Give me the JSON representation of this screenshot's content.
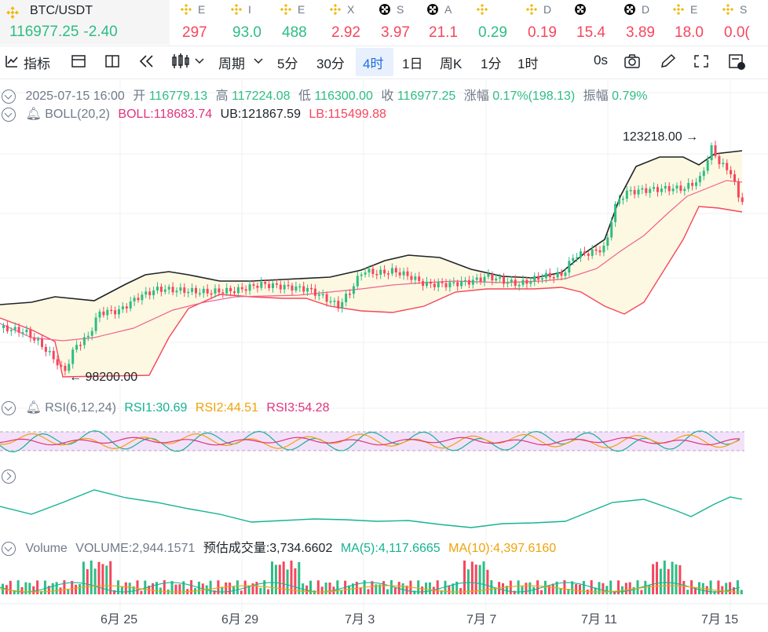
{
  "ticker": {
    "symbol": "BTC/USDT",
    "price": "116977.25",
    "change": "-2.40",
    "others": [
      {
        "icon": "bnb",
        "name": "E",
        "value": "297",
        "color": "#f6465d"
      },
      {
        "icon": "bnb",
        "name": "I",
        "value": "93.0",
        "color": "#2ebd85"
      },
      {
        "icon": "bnb",
        "name": "E",
        "value": "488",
        "color": "#2ebd85"
      },
      {
        "icon": "bnb",
        "name": "X",
        "value": "2.92",
        "color": "#f6465d"
      },
      {
        "icon": "okx",
        "name": "S",
        "value": "3.97",
        "color": "#f6465d"
      },
      {
        "icon": "okx",
        "name": "A",
        "value": "21.1",
        "color": "#f6465d"
      },
      {
        "icon": "bnb",
        "name": "",
        "value": "0.29",
        "color": "#2ebd85"
      },
      {
        "icon": "bnb",
        "name": "D",
        "value": "0.19",
        "color": "#f6465d"
      },
      {
        "icon": "okx",
        "name": "",
        "value": "15.4",
        "color": "#f6465d"
      },
      {
        "icon": "okx",
        "name": "D",
        "value": "3.89",
        "color": "#f6465d"
      },
      {
        "icon": "bnb",
        "name": "E",
        "value": "18.0",
        "color": "#f6465d"
      },
      {
        "icon": "bnb",
        "name": "S",
        "value": "0.0(",
        "color": "#f6465d"
      }
    ]
  },
  "toolbar": {
    "indicators": "指标",
    "period": "周期",
    "intervals": [
      "5分",
      "30分",
      "4时",
      "1日",
      "周K",
      "1分",
      "1时"
    ],
    "active": "4时",
    "countdown": "0s"
  },
  "ohlc": {
    "date": "2025-07-15 16:00",
    "open_label": "开",
    "open": "116779.13",
    "high_label": "高",
    "high": "117224.08",
    "low_label": "低",
    "low": "116300.00",
    "close_label": "收",
    "close": "116977.25",
    "change_label": "涨幅",
    "change": "0.17%(198.13)",
    "amp_label": "振幅",
    "amp": "0.79%"
  },
  "boll": {
    "name": "BOLL(20,2)",
    "mid": "BOLL:118683.74",
    "ub": "UB:121867.59",
    "lb": "LB:115499.88"
  },
  "price_marks": {
    "high": "123218.00",
    "low": "98200.00"
  },
  "rsi": {
    "name": "RSI(6,12,24)",
    "rsi1": "RSI1:30.69",
    "rsi2": "RSI2:44.51",
    "rsi3": "RSI3:54.28"
  },
  "volume": {
    "name": "Volume",
    "vol": "VOLUME:2,944.1571",
    "est": "预估成交量:3,734.6602",
    "ma5": "MA(5):4,117.6665",
    "ma10": "MA(10):4,397.6160"
  },
  "xaxis": [
    "6月 25",
    "6月 29",
    "7月 3",
    "7月 7",
    "7月 11",
    "7月 15"
  ],
  "colors": {
    "up": "#2ebd85",
    "down": "#f6465d",
    "boll_mid": "#f06292",
    "boll_band": "#1e2329",
    "band_fill": "#fdf8e1"
  }
}
